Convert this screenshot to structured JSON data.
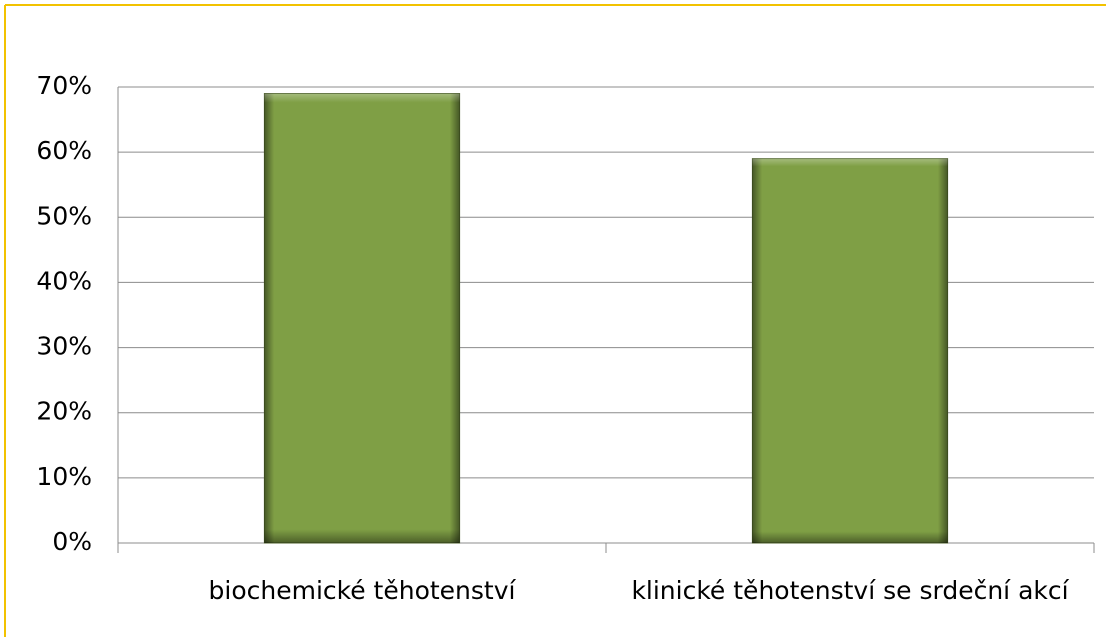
{
  "chart_data": {
    "type": "bar",
    "categories": [
      "biochemické těhotenství",
      "klinické těhotenství se srdeční akcí"
    ],
    "values": [
      69,
      59
    ],
    "color": "#7f9f45",
    "ylim": [
      0,
      70
    ],
    "yticks": [
      {
        "value": 0,
        "label": "0%"
      },
      {
        "value": 10,
        "label": "10%"
      },
      {
        "value": 20,
        "label": "20%"
      },
      {
        "value": 30,
        "label": "30%"
      },
      {
        "value": 40,
        "label": "40%"
      },
      {
        "value": 50,
        "label": "50%"
      },
      {
        "value": 60,
        "label": "60%"
      },
      {
        "value": 70,
        "label": "70%"
      }
    ],
    "grid": true
  }
}
